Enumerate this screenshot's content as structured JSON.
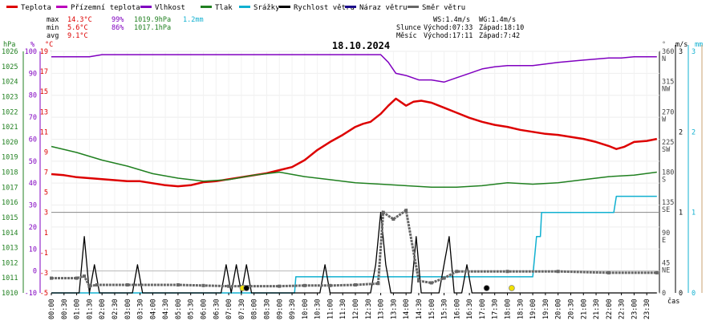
{
  "chart_data": {
    "type": "line",
    "title": "18.10.2024",
    "xlabel": "čas",
    "legend_position": "top",
    "legend": [
      {
        "label": "Teplota",
        "color": "#dd0000"
      },
      {
        "label": "Přízemní teplota",
        "color": "#bb00bb"
      },
      {
        "label": "Vlhkost",
        "color": "#8000c0"
      },
      {
        "label": "Tlak",
        "color": "#208020"
      },
      {
        "label": "Srážky",
        "color": "#10b0d0"
      },
      {
        "label": "Rychlost větru",
        "color": "#000000"
      },
      {
        "label": "Náraz větru",
        "color": "#1a0a8a"
      },
      {
        "label": "Směr větru",
        "color": "#666666"
      }
    ],
    "stats": {
      "max_label": "max",
      "min_label": "min",
      "avg_label": "avg",
      "temp_max": "14.3°C",
      "temp_min": "5.6°C",
      "temp_avg": "9.1°C",
      "hum_max": "99%",
      "hum_min": "86%",
      "press_max": "1019.9hPa",
      "press_min": "1017.1hPa",
      "rain_max": "1.2mm",
      "ws": "WS:1.4m/s",
      "wg": "WG:1.4m/s",
      "sun_label": "Slunce",
      "sun_rise": "Východ:07:33",
      "sun_set": "Západ:18:10",
      "moon_label": "Měsíc",
      "moon_rise": "Východ:17:11",
      "moon_set": "Západ:7:42"
    },
    "axes": {
      "pressure": {
        "unit": "hPa",
        "min": 1010,
        "max": 1026,
        "ticks": [
          1010,
          1011,
          1012,
          1013,
          1014,
          1015,
          1016,
          1017,
          1018,
          1019,
          1020,
          1021,
          1022,
          1023,
          1024,
          1025,
          1026
        ]
      },
      "humidity": {
        "unit": "%",
        "min": -10,
        "max": 100,
        "ticks": [
          -10,
          0,
          10,
          20,
          30,
          40,
          50,
          60,
          70,
          80,
          90,
          100
        ]
      },
      "temperature": {
        "unit": "°C",
        "min": -5,
        "max": 19,
        "ticks": [
          -5,
          -3,
          -1,
          1,
          3,
          5,
          7,
          9,
          11,
          13,
          15,
          17,
          19
        ]
      },
      "direction": {
        "unit": "°",
        "ticks": [
          {
            "deg": 0,
            "label": "0"
          },
          {
            "deg": 45,
            "label": "45",
            "compass": "NE"
          },
          {
            "deg": 90,
            "label": "90",
            "compass": "E"
          },
          {
            "deg": 135,
            "label": "135",
            "compass": "SE"
          },
          {
            "deg": 180,
            "label": "180",
            "compass": "S"
          },
          {
            "deg": 225,
            "label": "225",
            "compass": "SW"
          },
          {
            "deg": 270,
            "label": "270",
            "compass": "W"
          },
          {
            "deg": 315,
            "label": "315",
            "compass": "NW"
          },
          {
            "deg": 360,
            "label": "360",
            "compass": "N"
          }
        ]
      },
      "wind": {
        "unit": "m/s",
        "min": 0,
        "max": 3,
        "ticks": [
          0,
          1,
          2,
          3
        ]
      },
      "rain": {
        "unit": "mm",
        "min": 0,
        "max": 3,
        "ticks": [
          0,
          1,
          2,
          3
        ]
      }
    },
    "x_hours": [
      "00:00",
      "00:30",
      "01:00",
      "01:30",
      "02:00",
      "02:30",
      "03:00",
      "03:30",
      "04:00",
      "04:30",
      "05:00",
      "05:30",
      "06:00",
      "06:30",
      "07:00",
      "07:30",
      "08:00",
      "08:30",
      "09:00",
      "09:30",
      "10:00",
      "10:30",
      "11:00",
      "11:30",
      "12:00",
      "12:30",
      "13:00",
      "13:30",
      "14:00",
      "14:30",
      "15:00",
      "15:30",
      "16:00",
      "16:30",
      "17:00",
      "17:30",
      "18:00",
      "18:30",
      "19:00",
      "19:30",
      "20:00",
      "20:30",
      "21:00",
      "21:30",
      "22:00",
      "22:30",
      "23:00",
      "23:30"
    ],
    "series": [
      {
        "name": "Teplota",
        "color": "#dd0000",
        "unit": "°C",
        "points": [
          [
            0,
            6.8
          ],
          [
            0.5,
            6.7
          ],
          [
            1,
            6.5
          ],
          [
            1.5,
            6.4
          ],
          [
            2,
            6.3
          ],
          [
            2.5,
            6.2
          ],
          [
            3,
            6.1
          ],
          [
            3.5,
            6.1
          ],
          [
            4,
            5.9
          ],
          [
            4.5,
            5.7
          ],
          [
            5,
            5.6
          ],
          [
            5.5,
            5.7
          ],
          [
            6,
            6.0
          ],
          [
            6.5,
            6.1
          ],
          [
            7,
            6.3
          ],
          [
            7.5,
            6.5
          ],
          [
            8,
            6.7
          ],
          [
            8.5,
            6.9
          ],
          [
            9,
            7.2
          ],
          [
            9.5,
            7.5
          ],
          [
            10,
            8.2
          ],
          [
            10.5,
            9.2
          ],
          [
            11,
            10.0
          ],
          [
            11.5,
            10.7
          ],
          [
            12,
            11.5
          ],
          [
            12.3,
            11.8
          ],
          [
            12.6,
            12.0
          ],
          [
            13,
            12.8
          ],
          [
            13.3,
            13.6
          ],
          [
            13.6,
            14.3
          ],
          [
            14,
            13.6
          ],
          [
            14.3,
            14.0
          ],
          [
            14.6,
            14.1
          ],
          [
            15,
            13.9
          ],
          [
            15.5,
            13.4
          ],
          [
            16,
            12.9
          ],
          [
            16.5,
            12.4
          ],
          [
            17,
            12.0
          ],
          [
            17.5,
            11.7
          ],
          [
            18,
            11.5
          ],
          [
            18.5,
            11.2
          ],
          [
            19,
            11.0
          ],
          [
            19.5,
            10.8
          ],
          [
            20,
            10.7
          ],
          [
            20.5,
            10.5
          ],
          [
            21,
            10.3
          ],
          [
            21.5,
            10.0
          ],
          [
            22,
            9.6
          ],
          [
            22.3,
            9.3
          ],
          [
            22.6,
            9.5
          ],
          [
            23,
            10.0
          ],
          [
            23.5,
            10.1
          ],
          [
            23.9,
            10.3
          ]
        ]
      },
      {
        "name": "Vlhkost",
        "color": "#8000c0",
        "unit": "%",
        "points": [
          [
            0,
            97.5
          ],
          [
            1.5,
            97.5
          ],
          [
            2,
            98.5
          ],
          [
            10,
            98.5
          ],
          [
            12,
            98.5
          ],
          [
            13,
            98.5
          ],
          [
            13.3,
            95
          ],
          [
            13.6,
            90
          ],
          [
            14,
            89
          ],
          [
            14.5,
            87
          ],
          [
            15,
            87
          ],
          [
            15.5,
            86
          ],
          [
            16,
            88
          ],
          [
            16.5,
            90
          ],
          [
            17,
            92
          ],
          [
            17.5,
            93
          ],
          [
            18,
            93.5
          ],
          [
            19,
            93.5
          ],
          [
            20,
            95
          ],
          [
            21,
            96
          ],
          [
            22,
            97
          ],
          [
            22.5,
            97
          ],
          [
            23,
            97.5
          ],
          [
            23.9,
            97.5
          ]
        ]
      },
      {
        "name": "Tlak",
        "color": "#208020",
        "unit": "hPa",
        "points": [
          [
            0,
            1019.7
          ],
          [
            1,
            1019.3
          ],
          [
            2,
            1018.8
          ],
          [
            3,
            1018.4
          ],
          [
            4,
            1017.9
          ],
          [
            5,
            1017.6
          ],
          [
            6,
            1017.4
          ],
          [
            7,
            1017.5
          ],
          [
            8,
            1017.8
          ],
          [
            9,
            1018.0
          ],
          [
            10,
            1017.7
          ],
          [
            11,
            1017.5
          ],
          [
            12,
            1017.3
          ],
          [
            13,
            1017.2
          ],
          [
            14,
            1017.1
          ],
          [
            15,
            1017.0
          ],
          [
            16,
            1017.0
          ],
          [
            17,
            1017.1
          ],
          [
            18,
            1017.3
          ],
          [
            19,
            1017.2
          ],
          [
            20,
            1017.3
          ],
          [
            21,
            1017.5
          ],
          [
            22,
            1017.7
          ],
          [
            23,
            1017.8
          ],
          [
            23.9,
            1018.0
          ]
        ]
      },
      {
        "name": "Srážky",
        "color": "#10b0d0",
        "unit": "mm",
        "points": [
          [
            0,
            0
          ],
          [
            9.6,
            0
          ],
          [
            9.65,
            0.2
          ],
          [
            19,
            0.2
          ],
          [
            19.15,
            0.7
          ],
          [
            19.3,
            0.7
          ],
          [
            19.35,
            1.0
          ],
          [
            22.2,
            1.0
          ],
          [
            22.3,
            1.2
          ],
          [
            23.9,
            1.2
          ]
        ]
      },
      {
        "name": "Rychlost větru",
        "color": "#000000",
        "unit": "m/s",
        "points": [
          [
            0,
            0
          ],
          [
            1.1,
            0
          ],
          [
            1.3,
            0.7
          ],
          [
            1.5,
            0
          ],
          [
            1.7,
            0.35
          ],
          [
            1.9,
            0
          ],
          [
            3.2,
            0
          ],
          [
            3.4,
            0.35
          ],
          [
            3.6,
            0
          ],
          [
            6.7,
            0
          ],
          [
            6.9,
            0.35
          ],
          [
            7.1,
            0
          ],
          [
            7.3,
            0.35
          ],
          [
            7.5,
            0
          ],
          [
            7.7,
            0.35
          ],
          [
            7.9,
            0
          ],
          [
            10.6,
            0
          ],
          [
            10.8,
            0.35
          ],
          [
            11,
            0
          ],
          [
            12.6,
            0
          ],
          [
            12.8,
            0.35
          ],
          [
            13.0,
            1.0
          ],
          [
            13.2,
            0.35
          ],
          [
            13.4,
            0
          ],
          [
            14.2,
            0
          ],
          [
            14.4,
            0.7
          ],
          [
            14.6,
            0
          ],
          [
            15.3,
            0
          ],
          [
            15.5,
            0.35
          ],
          [
            15.7,
            0.7
          ],
          [
            15.9,
            0
          ],
          [
            16.2,
            0
          ],
          [
            16.4,
            0.35
          ],
          [
            16.6,
            0
          ],
          [
            23.9,
            0
          ]
        ]
      },
      {
        "name": "Směr větru",
        "color": "#666666",
        "unit": "°",
        "points": [
          [
            0,
            22
          ],
          [
            1,
            22
          ],
          [
            1.3,
            25
          ],
          [
            1.5,
            10
          ],
          [
            1.8,
            12
          ],
          [
            3,
            12
          ],
          [
            5,
            12
          ],
          [
            6,
            11
          ],
          [
            7,
            10
          ],
          [
            9,
            10
          ],
          [
            10,
            11
          ],
          [
            11,
            11
          ],
          [
            12,
            12
          ],
          [
            12.9,
            14
          ],
          [
            13.1,
            120
          ],
          [
            13.5,
            110
          ],
          [
            14,
            123
          ],
          [
            14.5,
            18
          ],
          [
            15,
            15
          ],
          [
            15.5,
            22
          ],
          [
            16,
            32
          ],
          [
            18,
            32
          ],
          [
            20,
            32
          ],
          [
            22,
            30
          ],
          [
            23.9,
            30
          ]
        ]
      }
    ],
    "markers": [
      {
        "kind": "sun",
        "hour": 7.55,
        "color": "#f0e000"
      },
      {
        "kind": "moon",
        "hour": 7.7,
        "color": "#000000"
      },
      {
        "kind": "moon",
        "hour": 17.18,
        "color": "#000000"
      },
      {
        "kind": "sun",
        "hour": 18.17,
        "color": "#f0e000"
      }
    ]
  }
}
